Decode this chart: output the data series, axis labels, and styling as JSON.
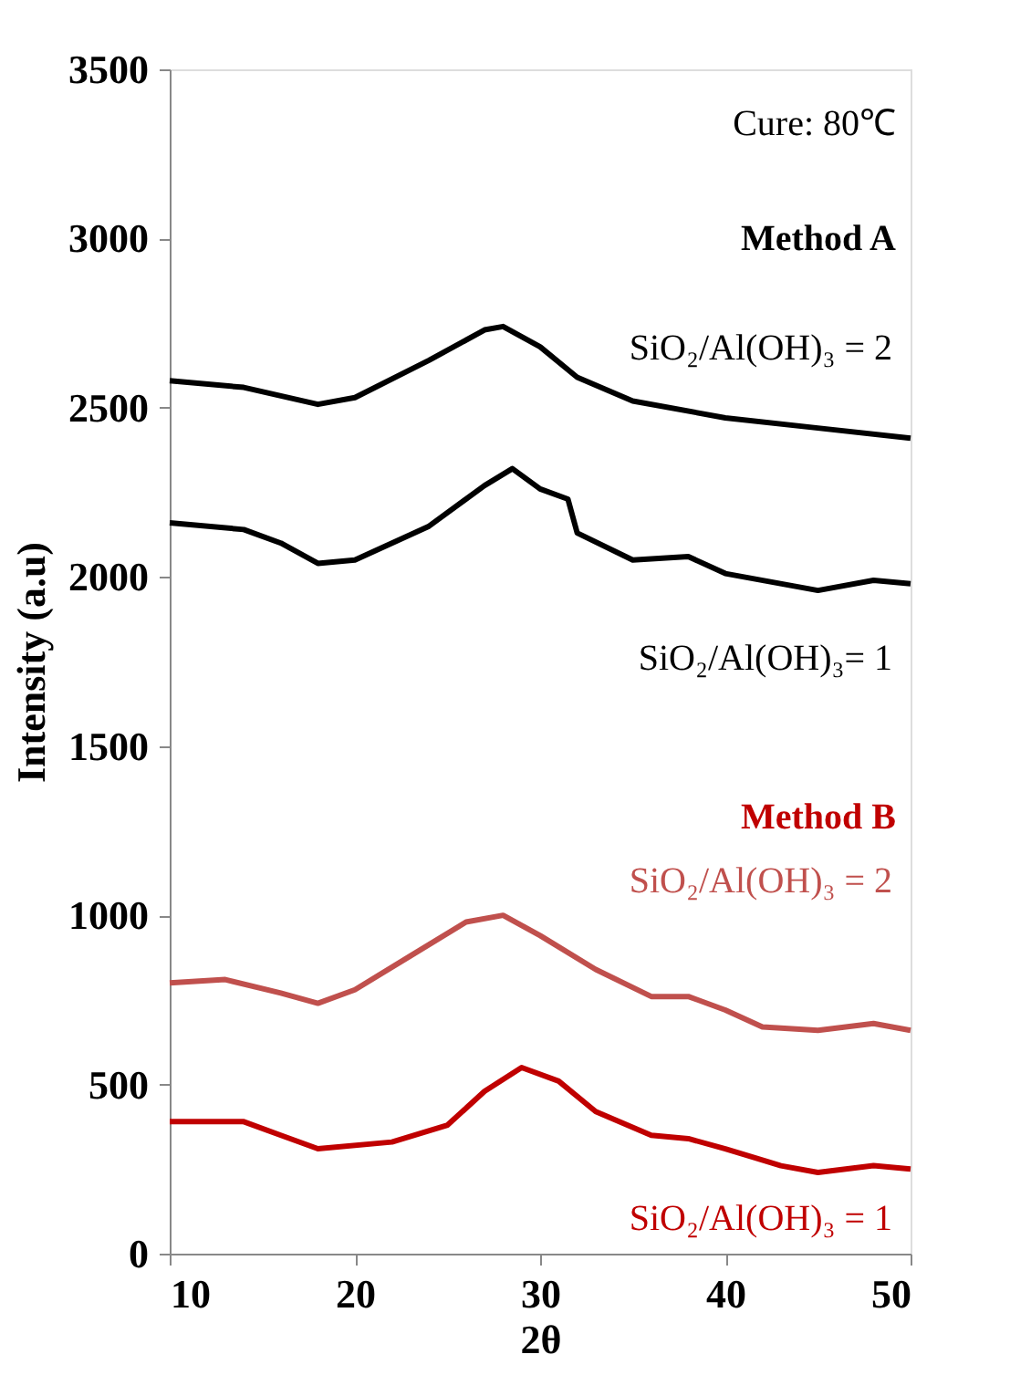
{
  "chart_data": {
    "type": "line",
    "xlabel": "2θ",
    "ylabel": "Intensity (a.u)",
    "annotations": [
      "Cure: 80℃",
      "Method A",
      "Method B"
    ],
    "xlim": [
      10,
      50
    ],
    "xticks": [
      10,
      20,
      30,
      40,
      50
    ],
    "ylim": [
      0,
      3500
    ],
    "yticks": [
      0,
      500,
      1000,
      1500,
      2000,
      2500,
      3000,
      3500
    ],
    "grid": false,
    "legend": false,
    "series": [
      {
        "name": "SiO₂/Al(OH)₃ = 2",
        "color": "#000000",
        "x": [
          10,
          14,
          18,
          20,
          24,
          27,
          28,
          30,
          32,
          35,
          40,
          45,
          50
        ],
        "values": [
          2580,
          2560,
          2510,
          2530,
          2640,
          2730,
          2740,
          2680,
          2590,
          2520,
          2470,
          2440,
          2410
        ]
      },
      {
        "name": "SiO₂/Al(OH)₃= 1",
        "color": "#000000",
        "x": [
          10,
          14,
          16,
          18,
          20,
          24,
          27,
          28.5,
          30,
          31.5,
          32,
          35,
          38,
          40,
          45,
          48,
          50
        ],
        "values": [
          2160,
          2140,
          2100,
          2040,
          2050,
          2150,
          2270,
          2320,
          2260,
          2230,
          2130,
          2050,
          2060,
          2010,
          1960,
          1990,
          1980
        ]
      },
      {
        "name": "SiO₂/Al(OH)₃ = 2",
        "color": "#c0504d",
        "x": [
          10,
          13,
          16,
          18,
          20,
          23,
          26,
          28,
          30,
          33,
          36,
          38,
          40,
          42,
          45,
          48,
          50
        ],
        "values": [
          800,
          810,
          770,
          740,
          780,
          880,
          980,
          1000,
          940,
          840,
          760,
          760,
          720,
          670,
          660,
          680,
          660
        ]
      },
      {
        "name": "SiO₂/Al(OH)₃ = 1",
        "color": "#c00000",
        "x": [
          10,
          14,
          16,
          18,
          22,
          25,
          27,
          29,
          31,
          33,
          36,
          38,
          40,
          43,
          45,
          48,
          50
        ],
        "values": [
          390,
          390,
          350,
          310,
          330,
          380,
          480,
          550,
          510,
          420,
          350,
          340,
          310,
          260,
          240,
          260,
          250
        ]
      }
    ]
  }
}
